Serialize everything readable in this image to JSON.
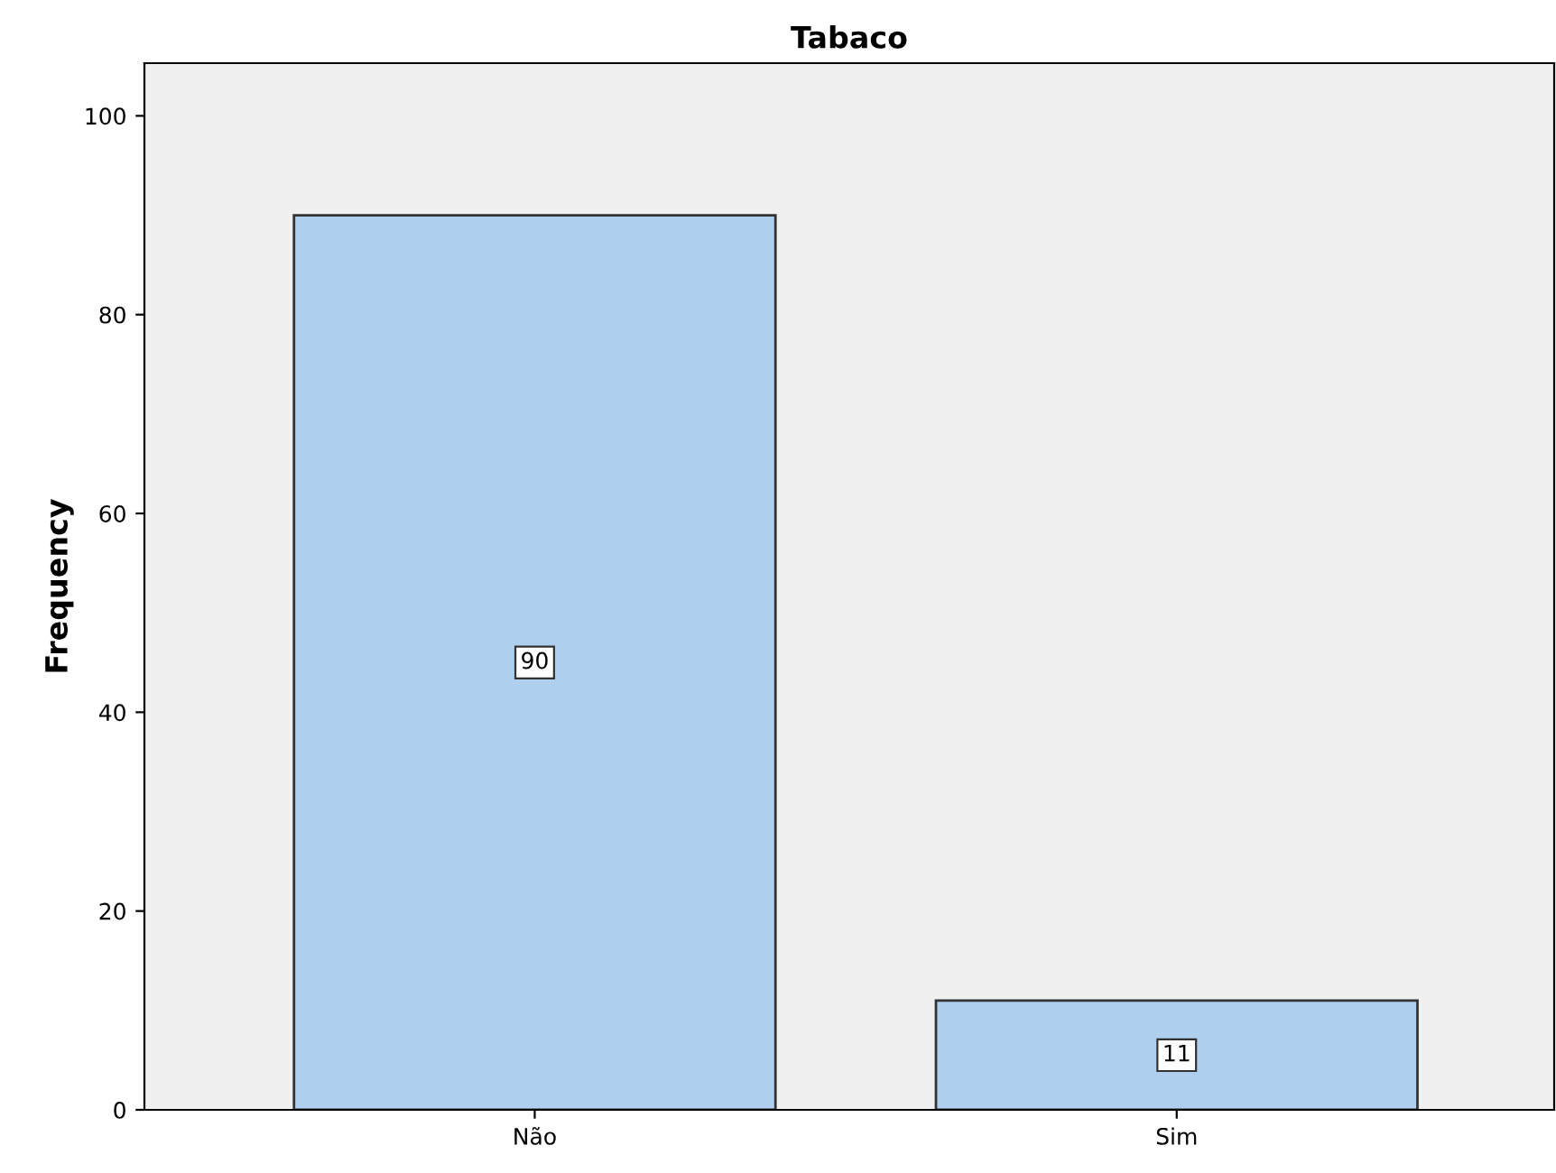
{
  "chart_data": {
    "type": "bar",
    "title": "Tabaco",
    "ylabel": "Frequency",
    "categories": [
      "Não",
      "Sim"
    ],
    "values": [
      90,
      11
    ],
    "color": "#aed0ee",
    "ylim": [
      0,
      105.3
    ],
    "yticks": [
      0,
      20,
      40,
      60,
      80,
      100
    ],
    "grid": false,
    "data_labels": true
  }
}
